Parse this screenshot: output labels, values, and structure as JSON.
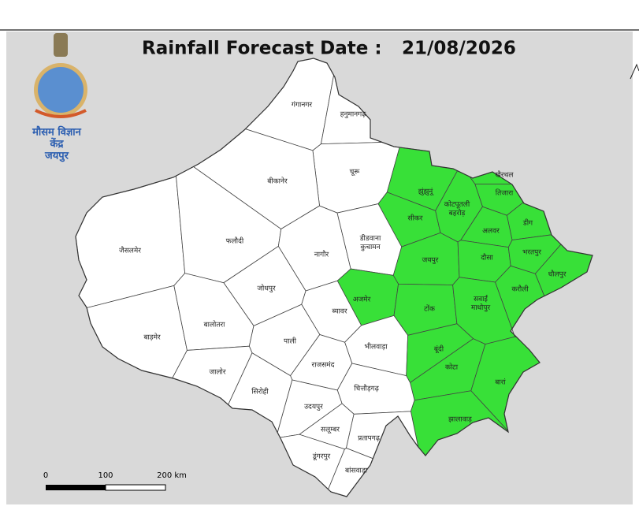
{
  "header": {
    "title": "Rainfall Forecast Date :",
    "date": "21/08/2026"
  },
  "logo": {
    "lines": [
      "मौसम विज्ञान",
      "केंद्र",
      "जयपुर"
    ]
  },
  "scale_bar": {
    "labels": [
      "0",
      "100",
      "200 km"
    ]
  },
  "districts": [
    {
      "label": "गंगानगर",
      "color": "#ffffff"
    },
    {
      "label": "हनुमानगढ़",
      "color": "#ffffff"
    },
    {
      "label": "चूरू",
      "color": "#ffffff"
    },
    {
      "label": "बीकानेर",
      "color": "#ffffff"
    },
    {
      "label": "झुंझुनूं",
      "color": "#38e038"
    },
    {
      "label": "खैरथल",
      "color": "#38e038"
    },
    {
      "label": "तिजारा",
      "color": "#38e038"
    },
    {
      "label": "सीकर",
      "color": "#38e038"
    },
    {
      "label": [
        "कोटपूतली",
        "बहरोड़"
      ],
      "color": "#38e038"
    },
    {
      "label": "डीग",
      "color": "#38e038"
    },
    {
      "label": "अलवर",
      "color": "#38e038"
    },
    {
      "label": "जैसलमेर",
      "color": "#ffffff"
    },
    {
      "label": "फलौदी",
      "color": "#ffffff"
    },
    {
      "label": "नागौर",
      "color": "#ffffff"
    },
    {
      "label": [
        "डीडवाना",
        "कुचामन"
      ],
      "color": "#ffffff"
    },
    {
      "label": "जयपुर",
      "color": "#38e038"
    },
    {
      "label": "दौसा",
      "color": "#38e038"
    },
    {
      "label": "भरतपुर",
      "color": "#38e038"
    },
    {
      "label": "धौलपुर",
      "color": "#38e038"
    },
    {
      "label": "करौली",
      "color": "#38e038"
    },
    {
      "label": "जोधपुर",
      "color": "#ffffff"
    },
    {
      "label": "अजमेर",
      "color": "#38e038"
    },
    {
      "label": "ब्यावर",
      "color": "#ffffff"
    },
    {
      "label": "टोंक",
      "color": "#38e038"
    },
    {
      "label": [
        "सवाई",
        "माधोपुर"
      ],
      "color": "#38e038"
    },
    {
      "label": "बाड़मेर",
      "color": "#ffffff"
    },
    {
      "label": "बालोतरा",
      "color": "#ffffff"
    },
    {
      "label": "पाली",
      "color": "#ffffff"
    },
    {
      "label": "भीलवाड़ा",
      "color": "#ffffff"
    },
    {
      "label": "बूंदी",
      "color": "#38e038"
    },
    {
      "label": "जालोर",
      "color": "#ffffff"
    },
    {
      "label": "राजसमंद",
      "color": "#ffffff"
    },
    {
      "label": "कोटा",
      "color": "#38e038"
    },
    {
      "label": "बारां",
      "color": "#38e038"
    },
    {
      "label": "सिरोही",
      "color": "#ffffff"
    },
    {
      "label": "चित्तौड़गढ़",
      "color": "#ffffff"
    },
    {
      "label": "उदयपुर",
      "color": "#ffffff"
    },
    {
      "label": "झालावाड़",
      "color": "#38e038"
    },
    {
      "label": "सलूम्बर",
      "color": "#ffffff"
    },
    {
      "label": "प्रतापगढ़",
      "color": "#ffffff"
    },
    {
      "label": "डूंगरपुर",
      "color": "#ffffff"
    },
    {
      "label": "बांसवाड़ा",
      "color": "#ffffff"
    }
  ]
}
